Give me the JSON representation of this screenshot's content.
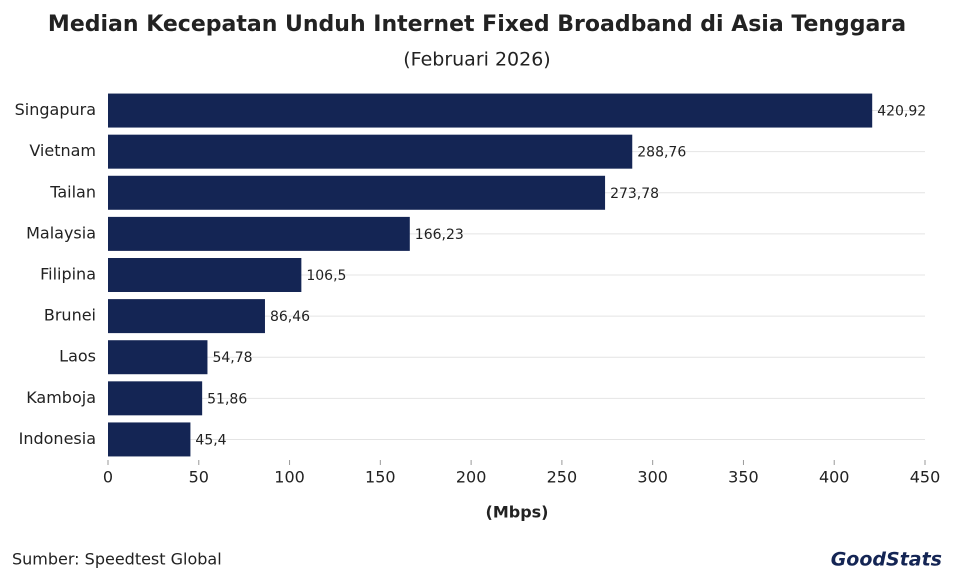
{
  "chart_data": {
    "type": "hbar",
    "title": "Median Kecepatan Unduh Internet Fixed Broadband di Asia Tenggara",
    "subtitle": "(Februari 2026)",
    "x_label": "(Mbps)",
    "categories": [
      "Singapura",
      "Vietnam",
      "Tailan",
      "Malaysia",
      "Filipina",
      "Brunei",
      "Laos",
      "Kamboja",
      "Indonesia"
    ],
    "values": [
      420.92,
      288.76,
      273.78,
      166.23,
      106.5,
      86.46,
      54.78,
      51.86,
      45.4
    ],
    "value_labels": [
      "420,92",
      "288,76",
      "273,78",
      "166,23",
      "106,5",
      "86,46",
      "54,78",
      "51,86",
      "45,4"
    ],
    "color": "#142554",
    "xlim": [
      0,
      450
    ],
    "xticks": [
      0,
      50,
      100,
      150,
      200,
      250,
      300,
      350,
      400,
      450
    ],
    "grid": true
  },
  "source": "Sumber: Speedtest Global",
  "logo": "GoodStats"
}
